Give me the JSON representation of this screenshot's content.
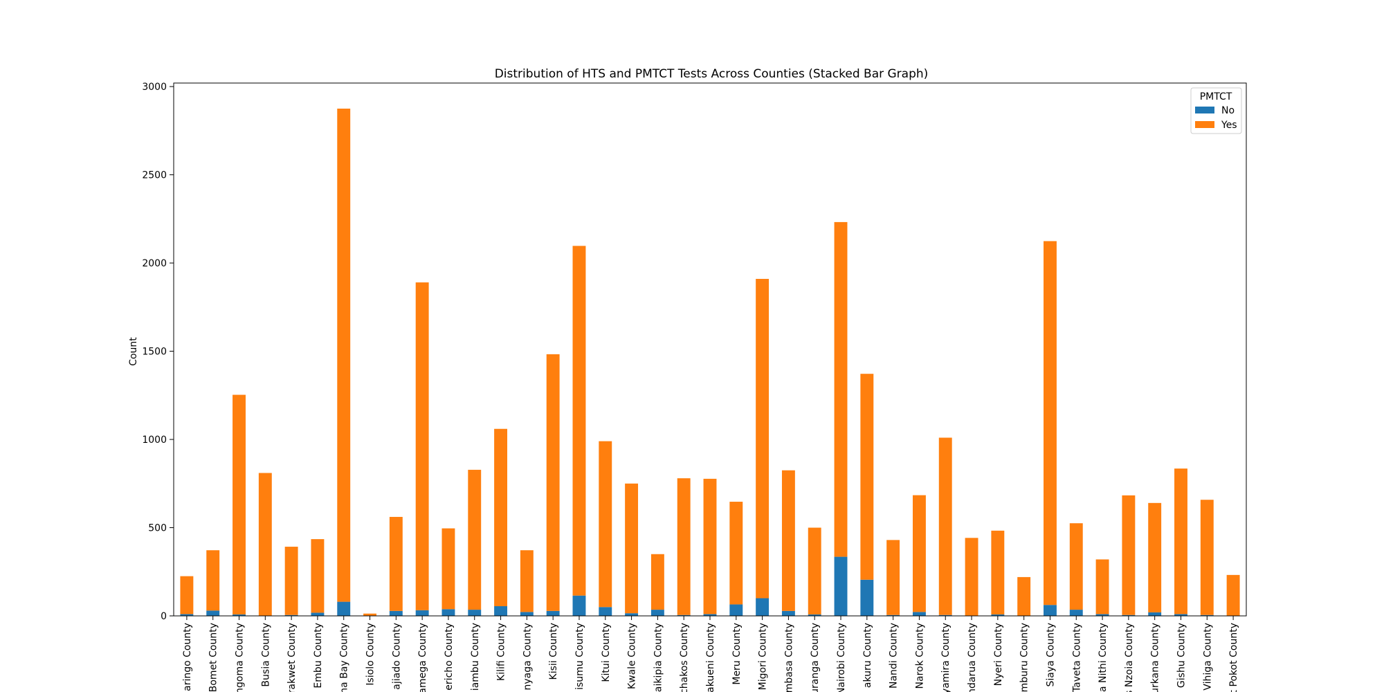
{
  "chart_data": {
    "type": "bar",
    "stacked": true,
    "title": "Distribution of HTS and PMTCT Tests Across Counties (Stacked Bar Graph)",
    "xlabel": "",
    "ylabel": "Count",
    "ylim": [
      0,
      3020
    ],
    "yticks": [
      0,
      500,
      1000,
      1500,
      2000,
      2500,
      3000
    ],
    "grid": false,
    "legend": {
      "title": "PMTCT",
      "placement": "top-right"
    },
    "categories": [
      "aringo County",
      "Bomet County",
      "ngoma County",
      "Busia County",
      "rakwet County",
      "Embu County",
      "na Bay County",
      "Isiolo County",
      "ajiado County",
      "amega County",
      "ericho County",
      "iambu County",
      "Kilifi County",
      "nyaga County",
      "Kisii County",
      "isumu County",
      "Kitui County",
      "Kwale County",
      "aikipia County",
      "chakos County",
      "akueni County",
      "Meru County",
      "Migori County",
      "mbasa County",
      "uranga County",
      "Nairobi County",
      "akuru County",
      "Nandi County",
      "Narok County",
      "yamira County",
      "ndarua County",
      "Nyeri County",
      "mburu County",
      "Siaya County",
      "Taveta County",
      "a Nithi County",
      "s Nzoia County",
      "urkana County",
      "Gishu County",
      "Vihiga County",
      "t Pokot County"
    ],
    "series": [
      {
        "name": "No",
        "color": "#1f77b4",
        "values": [
          10,
          30,
          8,
          2,
          5,
          18,
          80,
          1,
          28,
          32,
          38,
          35,
          55,
          22,
          28,
          115,
          50,
          15,
          35,
          5,
          10,
          65,
          100,
          28,
          8,
          335,
          205,
          5,
          22,
          5,
          2,
          8,
          2,
          62,
          35,
          10,
          5,
          20,
          10,
          5,
          2
        ]
      },
      {
        "name": "Yes",
        "color": "#ff7f0e",
        "values": [
          215,
          342,
          1245,
          808,
          387,
          417,
          2795,
          12,
          533,
          1858,
          458,
          793,
          1005,
          350,
          1455,
          1982,
          940,
          735,
          315,
          775,
          767,
          582,
          1810,
          797,
          492,
          1897,
          1167,
          425,
          662,
          1005,
          440,
          475,
          218,
          2062,
          490,
          310,
          678,
          620,
          825,
          653,
          230
        ]
      }
    ]
  }
}
